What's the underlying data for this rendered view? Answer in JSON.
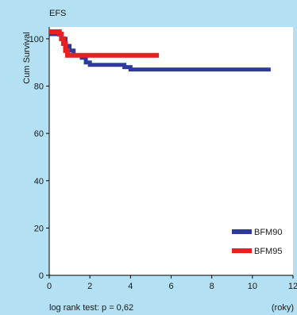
{
  "chart_data": {
    "type": "line",
    "title": "EFS",
    "xlabel": "",
    "ylabel": "Cum Survival",
    "x_unit_note": "(roky)",
    "footnote": "log rank test:  p = 0,62",
    "xlim": [
      0,
      12
    ],
    "ylim": [
      0,
      105
    ],
    "xticks": [
      0,
      2,
      4,
      6,
      8,
      10,
      12
    ],
    "yticks": [
      0,
      20,
      40,
      60,
      80,
      100
    ],
    "grid": false,
    "legend_position": "bottom-right",
    "series": [
      {
        "name": "BFM90",
        "color": "#2f3a9a",
        "x": [
          0,
          0.6,
          0.8,
          1.0,
          1.2,
          1.6,
          1.8,
          2.0,
          3.7,
          4.0,
          10.9
        ],
        "y": [
          102,
          100,
          97,
          95,
          93,
          92,
          90,
          89,
          88,
          87,
          87
        ]
      },
      {
        "name": "BFM95",
        "color": "#e82020",
        "x": [
          0,
          0.5,
          0.6,
          0.7,
          0.8,
          0.9,
          5.4
        ],
        "y": [
          103,
          102,
          100,
          98,
          95,
          93,
          93
        ]
      }
    ]
  }
}
